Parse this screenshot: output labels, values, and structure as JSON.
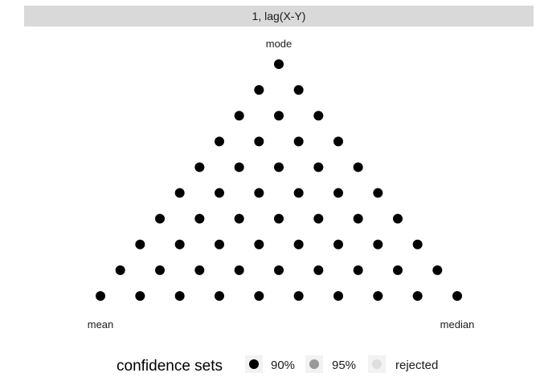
{
  "chart_data": {
    "type": "scatter",
    "panel_title": "1, lag(X-Y)",
    "vertex_labels": {
      "top": "mode",
      "left": "mean",
      "right": "median"
    },
    "grid_steps": 9,
    "points_by_row": [
      [
        {
          "set": "90%"
        }
      ],
      [
        {
          "set": "90%"
        },
        {
          "set": "90%"
        }
      ],
      [
        {
          "set": "90%"
        },
        {
          "set": "90%"
        },
        {
          "set": "90%"
        }
      ],
      [
        {
          "set": "90%"
        },
        {
          "set": "90%"
        },
        {
          "set": "90%"
        },
        {
          "set": "90%"
        }
      ],
      [
        {
          "set": "90%"
        },
        {
          "set": "90%"
        },
        {
          "set": "90%"
        },
        {
          "set": "90%"
        },
        {
          "set": "90%"
        }
      ],
      [
        {
          "set": "90%"
        },
        {
          "set": "90%"
        },
        {
          "set": "90%"
        },
        {
          "set": "90%"
        },
        {
          "set": "90%"
        },
        {
          "set": "90%"
        }
      ],
      [
        {
          "set": "90%"
        },
        {
          "set": "90%"
        },
        {
          "set": "90%"
        },
        {
          "set": "90%"
        },
        {
          "set": "90%"
        },
        {
          "set": "90%"
        },
        {
          "set": "90%"
        }
      ],
      [
        {
          "set": "90%"
        },
        {
          "set": "90%"
        },
        {
          "set": "90%"
        },
        {
          "set": "90%"
        },
        {
          "set": "90%"
        },
        {
          "set": "90%"
        },
        {
          "set": "90%"
        },
        {
          "set": "90%"
        }
      ],
      [
        {
          "set": "90%"
        },
        {
          "set": "90%"
        },
        {
          "set": "90%"
        },
        {
          "set": "90%"
        },
        {
          "set": "90%"
        },
        {
          "set": "90%"
        },
        {
          "set": "90%"
        },
        {
          "set": "90%"
        },
        {
          "set": "90%"
        }
      ],
      [
        {
          "set": "90%"
        },
        {
          "set": "90%"
        },
        {
          "set": "90%"
        },
        {
          "set": "90%"
        },
        {
          "set": "90%"
        },
        {
          "set": "90%"
        },
        {
          "set": "90%"
        },
        {
          "set": "90%"
        },
        {
          "set": "90%"
        },
        {
          "set": "90%"
        }
      ]
    ],
    "legend": {
      "title": "confidence sets",
      "position": "bottom",
      "items": [
        {
          "label": "90%",
          "color": "#000000"
        },
        {
          "label": "95%",
          "color": "#999999"
        },
        {
          "label": "rejected",
          "color": "#dedede"
        }
      ]
    },
    "colors": {
      "strip_background": "#d9d9d9",
      "panel_background": "#ffffff"
    }
  }
}
